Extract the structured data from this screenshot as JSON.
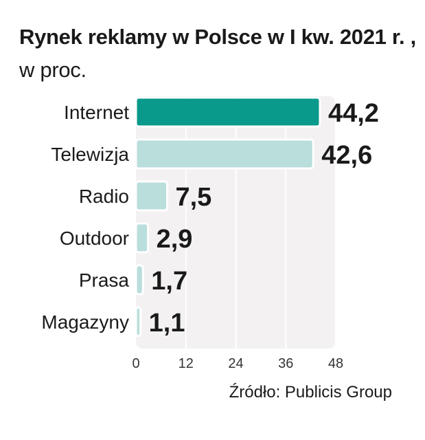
{
  "title": {
    "bold": "Rynek reklamy w Polsce w I kw. 2021 r. ,",
    "unit": " w proc."
  },
  "chart_data": {
    "type": "bar",
    "orientation": "horizontal",
    "title": "Rynek reklamy w Polsce w I kw. 2021 r. , w proc.",
    "categories": [
      "Internet",
      "Telewizja",
      "Radio",
      "Outdoor",
      "Prasa",
      "Magazyny"
    ],
    "values": [
      44.2,
      42.6,
      7.5,
      2.9,
      1.7,
      1.1
    ],
    "value_labels": [
      "44,2",
      "42,6",
      "7,5",
      "2,9",
      "1,7",
      "1,1"
    ],
    "xticks": [
      0,
      12,
      24,
      36,
      48
    ],
    "xlim": [
      0,
      48
    ],
    "highlight_color": "#0a9a8b",
    "bar_color": "#b9dedb",
    "grid": true,
    "xlabel": "",
    "ylabel": ""
  },
  "source": "Źródło: Publicis Group"
}
